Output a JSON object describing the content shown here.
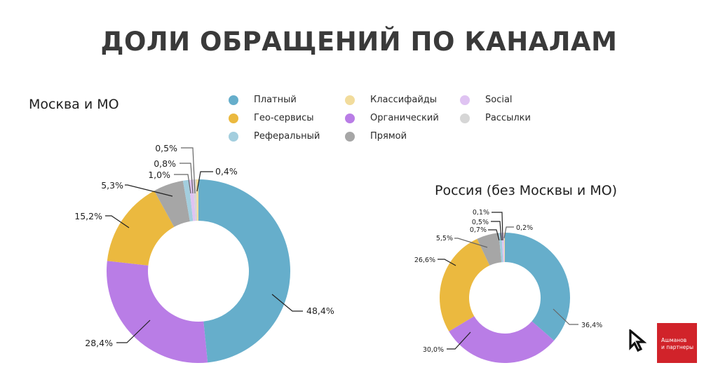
{
  "title": "ДОЛИ ОБРАЩЕНИЙ ПО КАНАЛАМ",
  "legend": [
    {
      "label": "Платный",
      "color": "#66aecb"
    },
    {
      "label": "Гео-сервисы",
      "color": "#ebb93f"
    },
    {
      "label": "Реферальный",
      "color": "#a3cede"
    },
    {
      "label": "Классифайды",
      "color": "#f2dc9c"
    },
    {
      "label": "Органический",
      "color": "#b97de6"
    },
    {
      "label": "Прямой",
      "color": "#a6a6a6"
    },
    {
      "label": "Social",
      "color": "#dfc3f2"
    },
    {
      "label": "Рассылки",
      "color": "#d6d6d6"
    }
  ],
  "brand": {
    "line1": "Ашманов",
    "line2": "и партнеры"
  },
  "chart_data": [
    {
      "type": "pie",
      "variant": "donut",
      "title": "Москва и МО",
      "categories": [
        "Платный",
        "Органический",
        "Гео-сервисы",
        "Прямой",
        "Реферальный",
        "Social",
        "Рассылки",
        "Классифайды"
      ],
      "values": [
        48.4,
        28.4,
        15.2,
        5.3,
        1.0,
        0.8,
        0.5,
        0.4
      ],
      "labels": [
        "48,4%",
        "28,4%",
        "15,2%",
        "5,3%",
        "1,0%",
        "0,8%",
        "0,5%",
        "0,4%"
      ]
    },
    {
      "type": "pie",
      "variant": "donut",
      "title": "Россия (без Москвы и МО)",
      "categories": [
        "Платный",
        "Органический",
        "Гео-сервисы",
        "Прямой",
        "Реферальный",
        "Social",
        "Рассылки",
        "Классифайды"
      ],
      "values": [
        36.4,
        30.0,
        26.6,
        5.5,
        0.7,
        0.5,
        0.1,
        0.2
      ],
      "labels": [
        "36,4%",
        "30,0%",
        "26,6%",
        "5,5%",
        "0,7%",
        "0,5%",
        "0,1%",
        "0,2%"
      ]
    }
  ]
}
